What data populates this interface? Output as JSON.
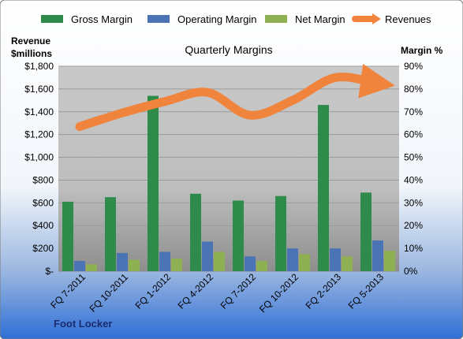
{
  "chart_data": {
    "type": "bar",
    "title": "Quarterly Margins",
    "company": "Foot Locker",
    "left_axis_label_line1": "Revenue",
    "left_axis_label_line2": "$millions",
    "right_axis_label": "Margin %",
    "categories": [
      "FQ 7-2011",
      "FQ 10-2011",
      "FQ 1-2012",
      "FQ 4-2012",
      "FQ 7-2012",
      "FQ 10-2012",
      "FQ 2-2013",
      "FQ 5-2013"
    ],
    "left_ticks": [
      "$-",
      "$200",
      "$400",
      "$600",
      "$800",
      "$1,000",
      "$1,200",
      "$1,400",
      "$1,600",
      "$1,800"
    ],
    "right_ticks": [
      "0%",
      "10%",
      "20%",
      "30%",
      "40%",
      "50%",
      "60%",
      "70%",
      "80%",
      "90%"
    ],
    "ylim_left": [
      0,
      1800
    ],
    "ylim_right": [
      0,
      90
    ],
    "legend_position": "top",
    "series": [
      {
        "name": "Gross Margin",
        "axis": "right",
        "kind": "bar",
        "color": "#2e8b4a",
        "values": [
          30.5,
          32.5,
          77,
          34,
          31,
          33,
          73,
          34.5
        ]
      },
      {
        "name": "Operating Margin",
        "axis": "right",
        "kind": "bar",
        "color": "#4a74b4",
        "values": [
          4.5,
          8,
          8.5,
          13,
          6.5,
          10,
          10,
          13.5
        ]
      },
      {
        "name": "Net Margin",
        "axis": "right",
        "kind": "bar",
        "color": "#8fb050",
        "values": [
          3,
          5,
          5.5,
          8.5,
          4.5,
          7.5,
          6.5,
          9
        ]
      },
      {
        "name": "Revenues",
        "axis": "left",
        "kind": "line",
        "color": "#f0843c",
        "values": [
          1270,
          1390,
          1490,
          1570,
          1370,
          1500,
          1700,
          1650
        ]
      }
    ]
  }
}
